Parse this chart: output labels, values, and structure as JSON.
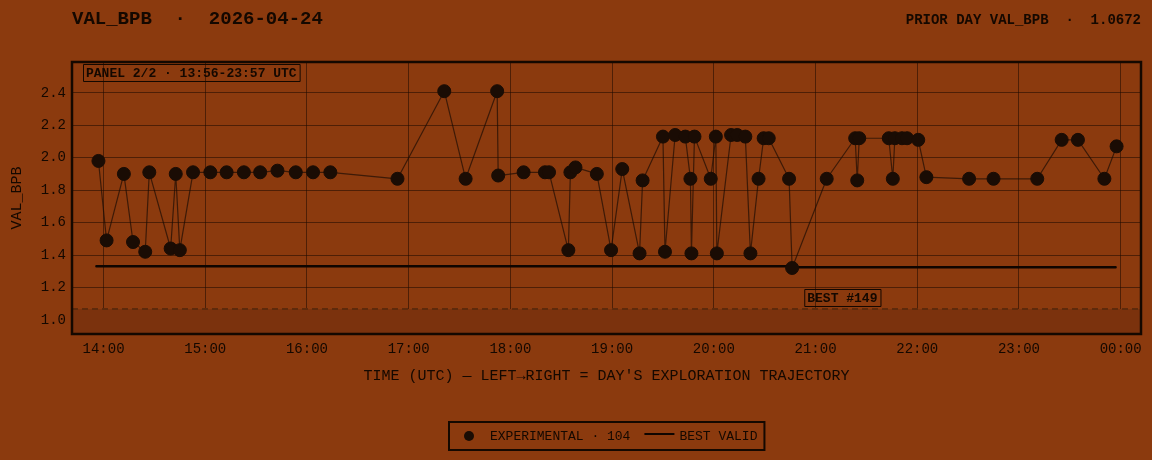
{
  "chart_data": {
    "type": "line",
    "title": "VAL_BPB  ·  2026-04-24",
    "subtitle": "PRIOR DAY VAL_BPB  ·  1.0672",
    "xlabel": "TIME (UTC) — LEFT→RIGHT = DAY'S EXPLORATION TRAJECTORY",
    "ylabel": "VAL_BPB",
    "annotations": [
      "PANEL 2/2 · 13:56-23:57 UTC"
    ],
    "xlim": [
      13.69,
      24.2
    ],
    "xticks": [
      {
        "value": 14,
        "label": "14:00"
      },
      {
        "value": 15,
        "label": "15:00"
      },
      {
        "value": 16,
        "label": "16:00"
      },
      {
        "value": 17,
        "label": "17:00"
      },
      {
        "value": 18,
        "label": "18:00"
      },
      {
        "value": 19,
        "label": "19:00"
      },
      {
        "value": 20,
        "label": "20:00"
      },
      {
        "value": 21,
        "label": "21:00"
      },
      {
        "value": 22,
        "label": "22:00"
      },
      {
        "value": 23,
        "label": "23:00"
      },
      {
        "value": 24,
        "label": "00:00"
      }
    ],
    "ylim": [
      0.913,
      2.59
    ],
    "yticks": [
      {
        "value": 1,
        "label": "1.0"
      },
      1.2,
      1.4,
      1.6,
      1.8,
      {
        "value": 2,
        "label": "2.0"
      },
      2.2,
      2.4
    ],
    "series": [
      {
        "name": "EXPERIMENTAL · 104",
        "color": "#1a0c04",
        "x": [
          13.95,
          14.03,
          14.2,
          14.29,
          14.41,
          14.45,
          14.66,
          14.71,
          14.75,
          14.88,
          15.05,
          15.21,
          15.38,
          15.54,
          15.71,
          15.89,
          16.06,
          16.23,
          16.89,
          17.35,
          17.56,
          17.87,
          17.88,
          18.13,
          18.34,
          18.38,
          18.57,
          18.59,
          18.64,
          18.85,
          18.99,
          19.1,
          19.27,
          19.3,
          19.5,
          19.52,
          19.62,
          19.72,
          19.77,
          19.78,
          19.81,
          19.97,
          20.02,
          20.03,
          20.17,
          20.23,
          20.31,
          20.36,
          20.44,
          20.49,
          20.54,
          20.74,
          20.77,
          21.11,
          21.39,
          21.41,
          21.43,
          21.72,
          21.76,
          21.78,
          21.85,
          21.9,
          22.01,
          22.09,
          22.51,
          22.75,
          23.18,
          23.42,
          23.58,
          23.84,
          23.96
        ],
        "values": [
          1.98,
          1.49,
          1.9,
          1.48,
          1.42,
          1.91,
          1.44,
          1.9,
          1.43,
          1.91,
          1.91,
          1.91,
          1.91,
          1.91,
          1.92,
          1.91,
          1.91,
          1.91,
          1.87,
          2.41,
          1.87,
          2.41,
          1.89,
          1.91,
          1.91,
          1.91,
          1.43,
          1.91,
          1.94,
          1.9,
          1.43,
          1.93,
          1.41,
          1.86,
          2.13,
          1.42,
          2.14,
          2.13,
          1.87,
          1.41,
          2.13,
          1.87,
          2.13,
          1.41,
          2.14,
          2.14,
          2.13,
          1.41,
          1.87,
          2.12,
          2.12,
          1.87,
          1.32,
          1.87,
          2.12,
          1.86,
          2.12,
          2.12,
          1.87,
          2.12,
          2.12,
          2.12,
          2.11,
          1.88,
          1.87,
          1.87,
          1.87,
          2.11,
          2.11,
          1.87,
          2.07
        ]
      },
      {
        "name": "BEST VALID",
        "type": "step",
        "color": "#0f0500",
        "marker": "none",
        "x": [
          13.93,
          20.77,
          23.95
        ],
        "values": [
          1.33,
          1.325,
          1.325
        ]
      }
    ],
    "ref_lines": [
      {
        "axis": "y",
        "value": 1.0672,
        "label": "BEST #149",
        "color": "#5e2a0b",
        "line_style": "dashed"
      }
    ],
    "bands": [
      {
        "axis": "y",
        "from": 0.913,
        "to": 1.0672,
        "color": "#7b320d"
      }
    ],
    "grid": true,
    "legend": "bottom",
    "marker": "circle"
  }
}
